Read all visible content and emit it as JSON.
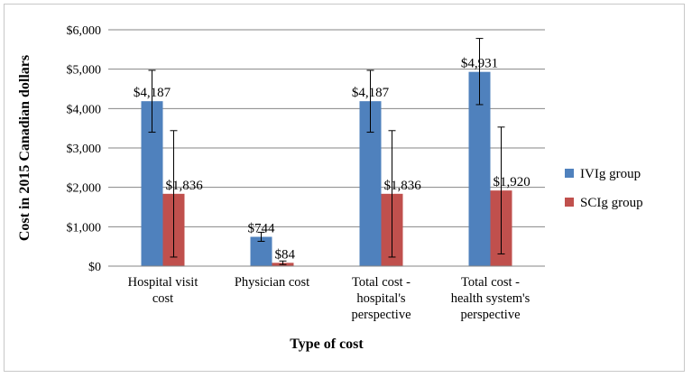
{
  "chart_data": {
    "type": "bar",
    "categories": [
      [
        "Hospital visit",
        "cost"
      ],
      [
        "Physician cost"
      ],
      [
        "Total cost -",
        "hospital's",
        "perspective"
      ],
      [
        "Total cost -",
        "health system's",
        "perspective"
      ]
    ],
    "series": [
      {
        "name": "IVIg group",
        "color": "#4f81bd",
        "values": [
          4187,
          744,
          4187,
          4931
        ],
        "labels": [
          "$4,187",
          "$744",
          "$4,187",
          "$4,931"
        ],
        "err_low": [
          3400,
          630,
          3400,
          4100
        ],
        "err_high": [
          4970,
          860,
          4970,
          5780
        ]
      },
      {
        "name": "SCIg group",
        "color": "#c0504d",
        "values": [
          1836,
          84,
          1836,
          1920
        ],
        "labels": [
          "$1,836",
          "$84",
          "$1,836",
          "$1,920"
        ],
        "err_low": [
          230,
          40,
          230,
          310
        ],
        "err_high": [
          3440,
          130,
          3440,
          3530
        ]
      }
    ],
    "xlabel": "Type of cost",
    "ylabel": "Cost in 2015 Canadian dollars",
    "ylim": [
      0,
      6000
    ],
    "yticks": [
      0,
      1000,
      2000,
      3000,
      4000,
      5000,
      6000
    ],
    "ytick_labels": [
      "$0",
      "$1,000",
      "$2,000",
      "$3,000",
      "$4,000",
      "$5,000",
      "$6,000"
    ],
    "grid": true,
    "legend_position": "right"
  }
}
